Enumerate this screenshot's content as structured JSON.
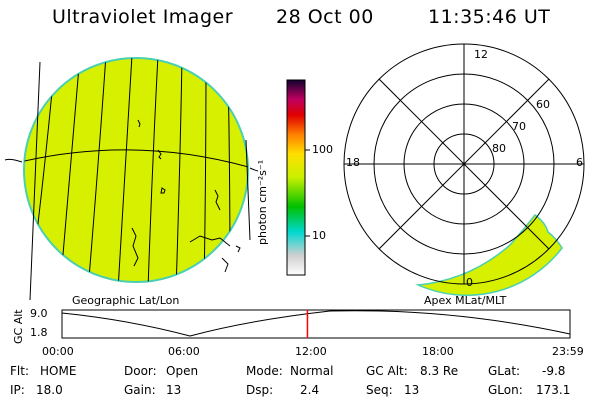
{
  "header": {
    "instrument": "Ultraviolet Imager",
    "date": "28 Oct 00",
    "time": "11:35:46 UT"
  },
  "colorbar": {
    "unit_label": "photon cm⁻²s⁻¹",
    "ticks": [
      "100",
      "10"
    ]
  },
  "panels": {
    "left_caption": "Geographic Lat/Lon",
    "right_caption": "Apex MLat/MLT"
  },
  "polar": {
    "mlt_labels": {
      "top": "12",
      "left": "18",
      "right": "6",
      "bottom": "0"
    },
    "lat_labels": [
      "60",
      "70",
      "80"
    ]
  },
  "altitude_plot": {
    "ylabel": "GC Alt",
    "yticks": [
      "9.0",
      "1.8"
    ],
    "xticks": [
      "00:00",
      "06:00",
      "12:00",
      "18:00",
      "23:59"
    ],
    "current_time_fraction": 0.4832
  },
  "status": {
    "flt_label": "Flt:",
    "flt_value": "HOME",
    "ip_label": "IP:",
    "ip_value": "18.0",
    "door_label": "Door:",
    "door_value": "Open",
    "gain_label": "Gain:",
    "gain_value": "13",
    "mode_label": "Mode:",
    "mode_value": "Normal",
    "dsp_label": "Dsp:",
    "dsp_value": "2.4",
    "gcalt_label": "GC Alt:",
    "gcalt_value": "8.3 Re",
    "seq_label": "Seq:",
    "seq_value": "13",
    "glat_label": "GLat:",
    "glat_value": "-9.8",
    "glon_label": "GLon:",
    "glon_value": "173.1"
  },
  "colors": {
    "disk_fill": "#d6f000",
    "disk_edge": "#4ad0b0",
    "aurora_fill": "#d6f000",
    "time_marker": "#ff0000"
  }
}
